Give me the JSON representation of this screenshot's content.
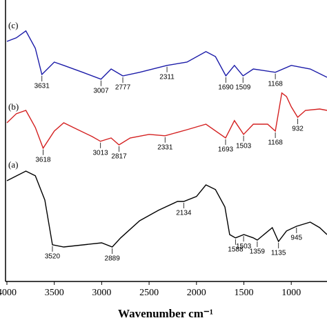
{
  "chart_data": {
    "type": "line",
    "xlabel": "Wavenumber cm⁻¹",
    "xlim": [
      4000,
      623
    ],
    "xticks": [
      4000,
      3500,
      3000,
      2500,
      2000,
      1500,
      1000
    ],
    "ylim": [
      0,
      102
    ],
    "series": [
      {
        "name": "(a)",
        "color": "#000000",
        "x": [
          4000,
          3800,
          3700,
          3600,
          3550,
          3520,
          3400,
          3000,
          2889,
          2800,
          2600,
          2400,
          2200,
          2134,
          2000,
          1900,
          1800,
          1700,
          1650,
          1588,
          1500,
          1400,
          1359,
          1200,
          1135,
          1050,
          945,
          800,
          700,
          623
        ],
        "values": [
          36.5,
          40,
          38.3,
          29.5,
          19.5,
          13.3,
          12.5,
          14,
          12.5,
          15.8,
          22,
          25.8,
          29,
          29,
          30.8,
          35,
          33.3,
          27,
          17,
          15.8,
          17,
          15.8,
          15,
          19.5,
          14.5,
          18.3,
          20,
          21.5,
          19.5,
          17
        ],
        "peaks": [
          3520,
          2889,
          2134,
          1588,
          1503,
          1359,
          1135,
          945
        ]
      },
      {
        "name": "(b)",
        "color": "#d42020",
        "x": [
          4000,
          3900,
          3800,
          3700,
          3618,
          3500,
          3400,
          3300,
          3100,
          3013,
          2900,
          2817,
          2700,
          2500,
          2331,
          2100,
          1900,
          1693,
          1600,
          1503,
          1400,
          1250,
          1168,
          1100,
          1050,
          1000,
          932,
          850,
          700,
          623
        ],
        "values": [
          57.5,
          60.8,
          62,
          55.8,
          48.3,
          54.5,
          57.5,
          55.8,
          52.5,
          50.8,
          52,
          49.5,
          52,
          53.3,
          52.8,
          55,
          57,
          52,
          58.3,
          53.3,
          57,
          57,
          54.5,
          68.3,
          67,
          63.3,
          59.5,
          62,
          62.5,
          62
        ],
        "peaks": [
          3618,
          3013,
          2817,
          2331,
          1693,
          1503,
          1168,
          932
        ]
      },
      {
        "name": "(c)",
        "color": "#1a1aa8",
        "x": [
          4000,
          3900,
          3800,
          3700,
          3631,
          3500,
          3400,
          3200,
          3007,
          2900,
          2777,
          2600,
          2311,
          2100,
          1900,
          1800,
          1690,
          1600,
          1509,
          1400,
          1168,
          1000,
          800,
          623
        ],
        "values": [
          87,
          88.3,
          90.8,
          84.5,
          75,
          79.5,
          78.3,
          75.8,
          73.3,
          77,
          74.5,
          75.8,
          78.3,
          79.5,
          83.3,
          81.5,
          74.5,
          78.3,
          74.5,
          77,
          75.8,
          78.3,
          77,
          74
        ],
        "peaks": [
          3631,
          3007,
          2777,
          2311,
          1690,
          1509,
          1168
        ]
      }
    ]
  }
}
